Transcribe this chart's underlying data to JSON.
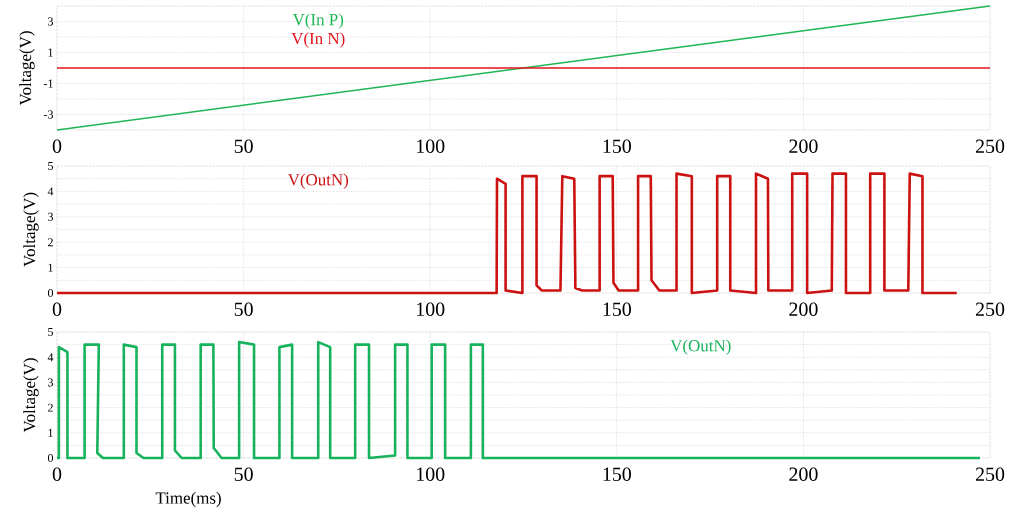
{
  "chart_data": [
    {
      "type": "line",
      "ylabel": "Voltage(V)",
      "legend": "top left",
      "grid": true,
      "xlim": [
        0,
        250
      ],
      "xticks": [
        0,
        50,
        100,
        150,
        200,
        250
      ],
      "ylim": [
        -4,
        4
      ],
      "yticks": [
        {
          "value": -4,
          "label": null
        },
        -3,
        {
          "value": -2,
          "label": null
        },
        -1,
        {
          "value": 0,
          "label": null
        },
        1,
        {
          "value": 2,
          "label": null
        },
        3,
        {
          "value": 4,
          "label": null
        }
      ],
      "series": [
        {
          "name": "V(In P)",
          "color": "#1fb554",
          "x": [
            0,
            250
          ],
          "values": [
            -4,
            4
          ]
        },
        {
          "name": "V(In N)",
          "color": "#e3161c",
          "x": [
            0,
            250
          ],
          "values": [
            0,
            0
          ]
        }
      ]
    },
    {
      "type": "line",
      "ylabel": "Voltage(V)",
      "legend": "top left",
      "grid": true,
      "xlim": [
        0,
        250
      ],
      "xticks": [
        0,
        50,
        100,
        150,
        200,
        250
      ],
      "ylim": [
        0,
        5
      ],
      "yticks": [
        0,
        {
          "value": 0.5,
          "label": null
        },
        1,
        {
          "value": 1.5,
          "label": null
        },
        2,
        {
          "value": 2.5,
          "label": null
        },
        3,
        {
          "value": 3.5,
          "label": null
        },
        4,
        {
          "value": 4.5,
          "label": null
        },
        5
      ],
      "series": [
        {
          "name": "V(OutN)",
          "color": "#cc1111",
          "x": [
            0,
            117.8,
            117.9,
            120.2,
            120.2,
            124.7,
            124.7,
            128.5,
            128.5,
            129.9,
            134.9,
            135.4,
            138.6,
            138.9,
            140.7,
            145.4,
            145.4,
            148.9,
            149.1,
            150.5,
            155.7,
            155.7,
            159.1,
            159.3,
            161.4,
            166.0,
            166.0,
            170.1,
            170.1,
            176.9,
            176.9,
            180.4,
            180.4,
            187.3,
            187.3,
            190.5,
            190.6,
            197.0,
            197.0,
            201.0,
            201.0,
            207.6,
            207.8,
            211.4,
            211.4,
            217.9,
            217.9,
            221.7,
            221.7,
            228.1,
            228.5,
            231.9,
            231.9,
            241.1
          ],
          "values": [
            0,
            0,
            4.5,
            4.3,
            0.1,
            0,
            4.6,
            4.6,
            0.3,
            0.1,
            0.1,
            4.6,
            4.5,
            0.2,
            0.1,
            0.1,
            4.6,
            4.6,
            0.4,
            0.1,
            0.1,
            4.6,
            4.6,
            0.5,
            0.1,
            0.1,
            4.7,
            4.6,
            0,
            0.1,
            4.6,
            4.6,
            0.1,
            0,
            4.7,
            4.5,
            0.1,
            0.1,
            4.7,
            4.7,
            0,
            0.1,
            4.7,
            4.7,
            0,
            0,
            4.7,
            4.7,
            0.1,
            0.1,
            4.7,
            4.6,
            0,
            0
          ]
        }
      ]
    },
    {
      "type": "line",
      "ylabel": "Voltage(V)",
      "xlabel": "Time(ms)",
      "legend": "top right",
      "grid": true,
      "xlim": [
        0,
        250
      ],
      "xticks": [
        0,
        50,
        100,
        150,
        200,
        250
      ],
      "ylim": [
        0,
        5
      ],
      "yticks": [
        0,
        {
          "value": 0.5,
          "label": null
        },
        1,
        {
          "value": 1.5,
          "label": null
        },
        2,
        {
          "value": 2.5,
          "label": null
        },
        3,
        {
          "value": 3.5,
          "label": null
        },
        4,
        {
          "value": 4.5,
          "label": null
        },
        5
      ],
      "series": [
        {
          "name": "V(OutN)",
          "color": "#17b35c",
          "x": [
            0,
            0.5,
            0.5,
            2.8,
            2.8,
            7.4,
            7.4,
            11.2,
            10.8,
            12.3,
            17.9,
            17.9,
            21.3,
            21.3,
            23.2,
            28.2,
            28.2,
            31.6,
            31.6,
            33.4,
            38.5,
            38.5,
            41.9,
            42.0,
            44.1,
            48.8,
            48.8,
            52.8,
            52.8,
            59.6,
            59.6,
            63.0,
            63.0,
            70.0,
            70.0,
            73.2,
            73.2,
            79.9,
            79.9,
            83.6,
            83.6,
            90.6,
            90.6,
            93.9,
            93.9,
            100.4,
            100.4,
            104.0,
            104.0,
            110.9,
            110.9,
            114.1,
            114.1,
            247.3
          ],
          "values": [
            0,
            0,
            4.4,
            4.2,
            0,
            0,
            4.5,
            4.5,
            0.2,
            0,
            0,
            4.5,
            4.4,
            0.2,
            0,
            0,
            4.5,
            4.5,
            0.3,
            0,
            0,
            4.5,
            4.5,
            0.4,
            0,
            0,
            4.6,
            4.5,
            0,
            0,
            4.4,
            4.5,
            0,
            0,
            4.6,
            4.4,
            0,
            0,
            4.5,
            4.5,
            0,
            0.1,
            4.5,
            4.5,
            0,
            0,
            4.5,
            4.5,
            0,
            0,
            4.5,
            4.5,
            0,
            0
          ]
        }
      ]
    }
  ]
}
